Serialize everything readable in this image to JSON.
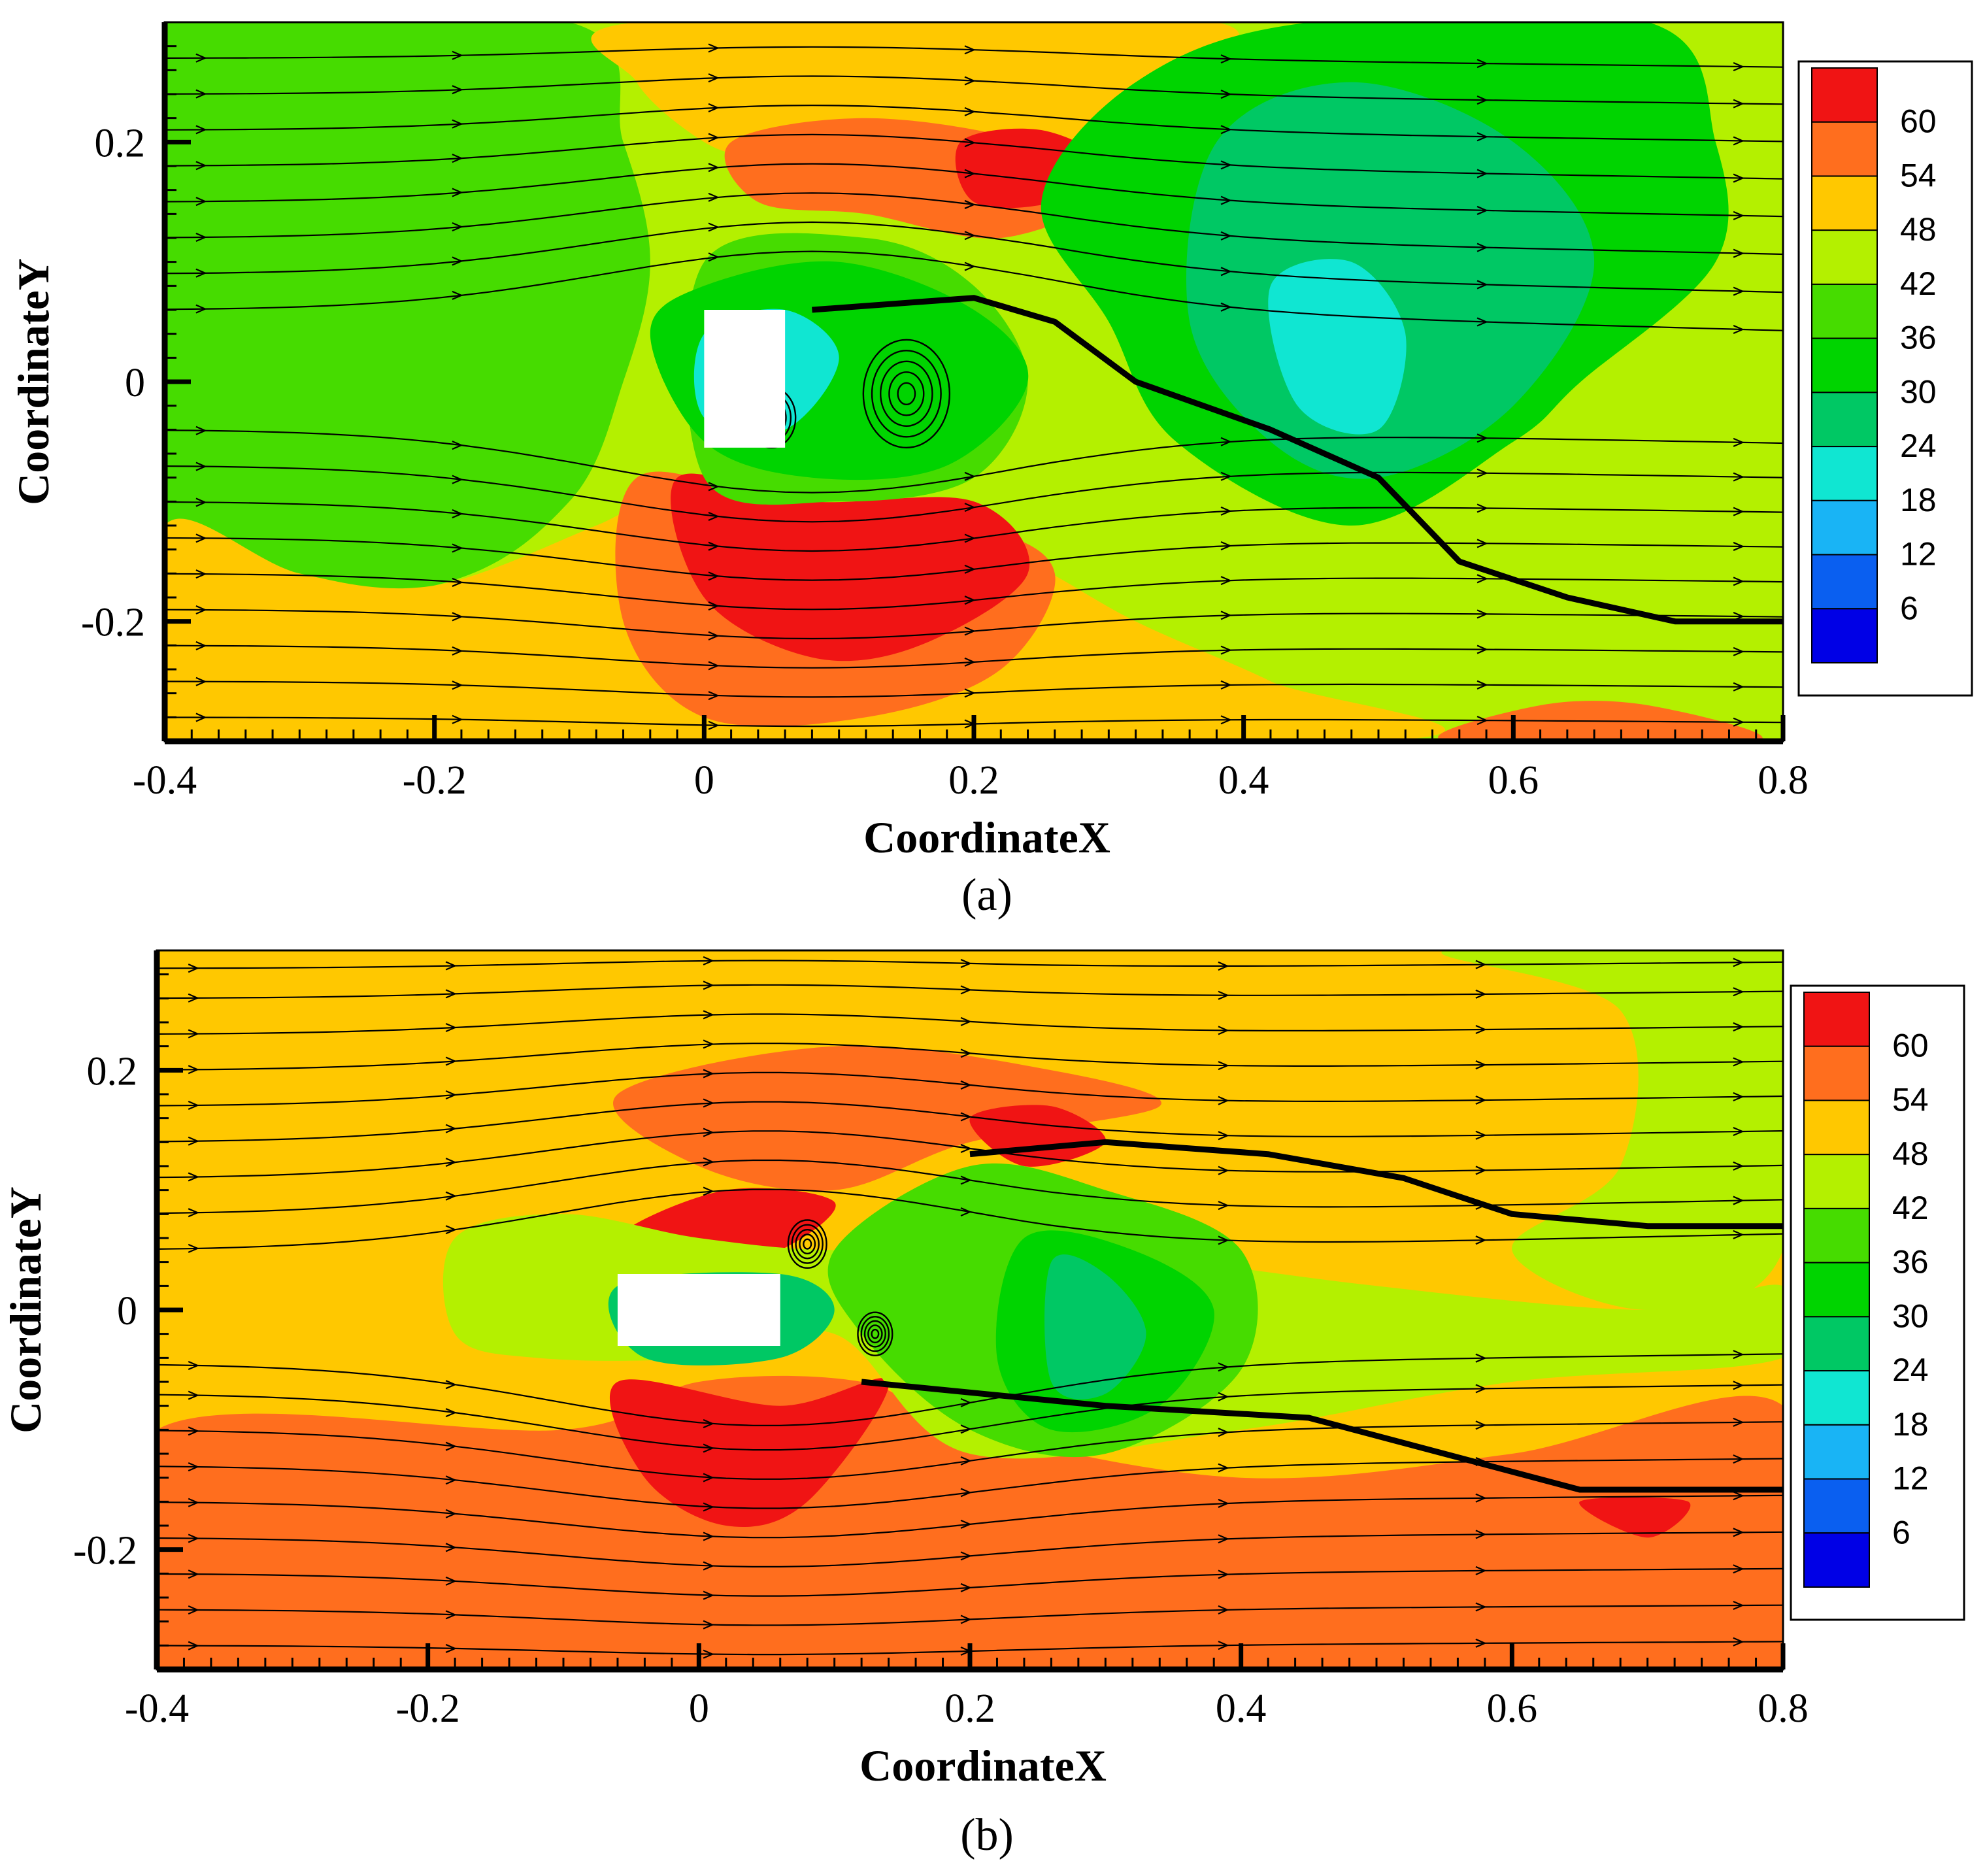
{
  "chart_data": [
    {
      "type": "heatmap",
      "panel_label": "(a)",
      "panel_letter": "a",
      "xlabel": "CoordinateX",
      "ylabel": "CoordinateY",
      "xlim": [
        -0.4,
        0.8
      ],
      "ylim": [
        -0.3,
        0.3
      ],
      "x_ticks": [
        -0.4,
        -0.2,
        0,
        0.2,
        0.4,
        0.6,
        0.8
      ],
      "x_tick_labels": [
        "-0.4",
        "-0.2",
        "0",
        "0.2",
        "0.4",
        "0.6",
        "0.8"
      ],
      "y_ticks": [
        0.2,
        0,
        -0.2
      ],
      "y_tick_labels": [
        "0.2",
        "0",
        "-0.2"
      ],
      "colorbar": {
        "levels": [
          6,
          12,
          18,
          24,
          30,
          36,
          42,
          48,
          54,
          60
        ],
        "labels": [
          "60",
          "54",
          "48",
          "42",
          "36",
          "30",
          "24",
          "18",
          "12",
          "6"
        ],
        "colors": [
          "#0000e6",
          "#0a5ff0",
          "#19b4f5",
          "#10e6d2",
          "#00c864",
          "#00d400",
          "#46dc00",
          "#b4f000",
          "#ffc800",
          "#ff6e1e",
          "#f01414"
        ]
      },
      "background_level": 42,
      "obstacle": {
        "x": [
          -0.0,
          0.06
        ],
        "y": [
          -0.055,
          0.06
        ]
      },
      "regions": [
        {
          "level": 36,
          "pts": [
            [
              -0.4,
              0.3
            ],
            [
              -0.1,
              0.3
            ],
            [
              -0.06,
              0.2
            ],
            [
              -0.04,
              0.1
            ],
            [
              -0.06,
              0.0
            ],
            [
              -0.1,
              -0.1
            ],
            [
              -0.2,
              -0.17
            ],
            [
              -0.4,
              -0.18
            ]
          ]
        },
        {
          "level": 48,
          "pts": [
            [
              -0.4,
              -0.12
            ],
            [
              -0.3,
              -0.16
            ],
            [
              -0.2,
              -0.17
            ],
            [
              -0.08,
              -0.12
            ],
            [
              0.0,
              -0.08
            ],
            [
              0.12,
              -0.12
            ],
            [
              0.22,
              -0.14
            ],
            [
              0.32,
              -0.2
            ],
            [
              0.42,
              -0.25
            ],
            [
              0.5,
              -0.3
            ],
            [
              -0.4,
              -0.3
            ]
          ]
        },
        {
          "level": 48,
          "pts": [
            [
              -0.05,
              0.3
            ],
            [
              0.38,
              0.3
            ],
            [
              0.3,
              0.22
            ],
            [
              0.2,
              0.16
            ],
            [
              0.12,
              0.14
            ],
            [
              0.05,
              0.18
            ],
            [
              0.0,
              0.2
            ],
            [
              -0.05,
              0.25
            ]
          ]
        },
        {
          "level": 54,
          "pts": [
            [
              0.02,
              0.2
            ],
            [
              0.12,
              0.22
            ],
            [
              0.24,
              0.2
            ],
            [
              0.3,
              0.16
            ],
            [
              0.22,
              0.12
            ],
            [
              0.12,
              0.14
            ],
            [
              0.04,
              0.15
            ]
          ]
        },
        {
          "level": 54,
          "pts": [
            [
              -0.05,
              -0.08
            ],
            [
              0.06,
              -0.1
            ],
            [
              0.2,
              -0.12
            ],
            [
              0.26,
              -0.16
            ],
            [
              0.22,
              -0.24
            ],
            [
              0.12,
              -0.28
            ],
            [
              0.0,
              -0.28
            ],
            [
              -0.06,
              -0.2
            ]
          ]
        },
        {
          "level": 60,
          "pts": [
            [
              -0.02,
              -0.08
            ],
            [
              0.08,
              -0.1
            ],
            [
              0.2,
              -0.1
            ],
            [
              0.24,
              -0.16
            ],
            [
              0.16,
              -0.22
            ],
            [
              0.08,
              -0.23
            ],
            [
              0.0,
              -0.18
            ]
          ]
        },
        {
          "level": 60,
          "pts": [
            [
              0.19,
              0.2
            ],
            [
              0.25,
              0.21
            ],
            [
              0.3,
              0.18
            ],
            [
              0.26,
              0.15
            ],
            [
              0.2,
              0.15
            ]
          ]
        },
        {
          "level": 54,
          "pts": [
            [
              0.55,
              -0.3
            ],
            [
              0.78,
              -0.3
            ],
            [
              0.7,
              -0.27
            ],
            [
              0.62,
              -0.27
            ]
          ]
        },
        {
          "level": 36,
          "pts": [
            [
              0.0,
              0.1
            ],
            [
              0.12,
              0.12
            ],
            [
              0.2,
              0.08
            ],
            [
              0.24,
              0.0
            ],
            [
              0.2,
              -0.08
            ],
            [
              0.1,
              -0.1
            ],
            [
              0.0,
              -0.08
            ]
          ]
        },
        {
          "level": 30,
          "pts": [
            [
              -0.04,
              0.04
            ],
            [
              0.0,
              0.08
            ],
            [
              0.1,
              0.1
            ],
            [
              0.2,
              0.06
            ],
            [
              0.24,
              0.0
            ],
            [
              0.18,
              -0.07
            ],
            [
              0.08,
              -0.08
            ],
            [
              0.0,
              -0.05
            ]
          ]
        },
        {
          "level": 30,
          "pts": [
            [
              0.32,
              0.25
            ],
            [
              0.45,
              0.3
            ],
            [
              0.7,
              0.3
            ],
            [
              0.75,
              0.2
            ],
            [
              0.75,
              0.1
            ],
            [
              0.65,
              0.0
            ],
            [
              0.6,
              -0.05
            ],
            [
              0.48,
              -0.12
            ],
            [
              0.35,
              -0.05
            ],
            [
              0.3,
              0.05
            ],
            [
              0.25,
              0.15
            ]
          ]
        },
        {
          "level": 24,
          "pts": [
            [
              0.38,
              0.2
            ],
            [
              0.48,
              0.25
            ],
            [
              0.6,
              0.2
            ],
            [
              0.66,
              0.1
            ],
            [
              0.6,
              -0.02
            ],
            [
              0.5,
              -0.08
            ],
            [
              0.42,
              -0.05
            ],
            [
              0.36,
              0.05
            ]
          ]
        },
        {
          "level": 18,
          "pts": [
            [
              0.42,
              0.08
            ],
            [
              0.48,
              0.1
            ],
            [
              0.52,
              0.04
            ],
            [
              0.5,
              -0.04
            ],
            [
              0.44,
              -0.02
            ]
          ]
        },
        {
          "level": 18,
          "pts": [
            [
              0.0,
              0.04
            ],
            [
              0.06,
              0.06
            ],
            [
              0.1,
              0.02
            ],
            [
              0.06,
              -0.04
            ],
            [
              0.0,
              -0.03
            ]
          ]
        }
      ],
      "streamline_offsets": [
        -0.28,
        -0.25,
        -0.22,
        -0.19,
        -0.16,
        -0.13,
        -0.1,
        -0.07,
        -0.04,
        0.06,
        0.09,
        0.12,
        0.15,
        0.18,
        0.21,
        0.24,
        0.27
      ],
      "wake_line": [
        [
          0.08,
          0.06
        ],
        [
          0.2,
          0.07
        ],
        [
          0.26,
          0.05
        ],
        [
          0.32,
          0.0
        ],
        [
          0.42,
          -0.04
        ],
        [
          0.5,
          -0.08
        ],
        [
          0.56,
          -0.15
        ],
        [
          0.64,
          -0.18
        ],
        [
          0.72,
          -0.2
        ],
        [
          0.8,
          -0.2
        ]
      ],
      "vortices": [
        [
          0.15,
          -0.01,
          0.045
        ],
        [
          0.05,
          -0.03,
          0.025
        ]
      ]
    },
    {
      "type": "heatmap",
      "panel_label": "(b)",
      "panel_letter": "b",
      "xlabel": "CoordinateX",
      "ylabel": "CoordinateY",
      "xlim": [
        -0.4,
        0.8
      ],
      "ylim": [
        -0.3,
        0.3
      ],
      "x_ticks": [
        -0.4,
        -0.2,
        0,
        0.2,
        0.4,
        0.6,
        0.8
      ],
      "x_tick_labels": [
        "-0.4",
        "-0.2",
        "0",
        "0.2",
        "0.4",
        "0.6",
        "0.8"
      ],
      "y_ticks": [
        0.2,
        0,
        -0.2
      ],
      "y_tick_labels": [
        "0.2",
        "0",
        "-0.2"
      ],
      "colorbar": {
        "levels": [
          6,
          12,
          18,
          24,
          30,
          36,
          42,
          48,
          54,
          60
        ],
        "labels": [
          "60",
          "54",
          "48",
          "42",
          "36",
          "30",
          "24",
          "18",
          "12",
          "6"
        ],
        "colors": [
          "#0000e6",
          "#0a5ff0",
          "#19b4f5",
          "#10e6d2",
          "#00c864",
          "#00d400",
          "#46dc00",
          "#b4f000",
          "#ffc800",
          "#ff6e1e",
          "#f01414"
        ]
      },
      "background_level": 48,
      "obstacle": {
        "x": [
          -0.06,
          0.06
        ],
        "y": [
          -0.03,
          0.03
        ]
      },
      "regions": [
        {
          "level": 54,
          "pts": [
            [
              -0.4,
              -0.1
            ],
            [
              -0.1,
              -0.1
            ],
            [
              0.0,
              -0.06
            ],
            [
              0.12,
              -0.06
            ],
            [
              0.2,
              -0.1
            ],
            [
              0.4,
              -0.14
            ],
            [
              0.6,
              -0.12
            ],
            [
              0.8,
              -0.08
            ],
            [
              0.8,
              -0.3
            ],
            [
              -0.4,
              -0.3
            ]
          ]
        },
        {
          "level": 54,
          "pts": [
            [
              -0.06,
              0.18
            ],
            [
              0.1,
              0.22
            ],
            [
              0.26,
              0.2
            ],
            [
              0.34,
              0.17
            ],
            [
              0.2,
              0.14
            ],
            [
              0.1,
              0.1
            ],
            [
              0.0,
              0.12
            ]
          ]
        },
        {
          "level": 60,
          "pts": [
            [
              -0.06,
              -0.06
            ],
            [
              0.06,
              -0.08
            ],
            [
              0.14,
              -0.06
            ],
            [
              0.08,
              -0.16
            ],
            [
              0.02,
              -0.18
            ],
            [
              -0.04,
              -0.14
            ]
          ]
        },
        {
          "level": 60,
          "pts": [
            [
              -0.06,
              0.06
            ],
            [
              0.02,
              0.1
            ],
            [
              0.1,
              0.09
            ],
            [
              0.06,
              0.05
            ],
            [
              0.0,
              0.04
            ]
          ]
        },
        {
          "level": 60,
          "pts": [
            [
              0.2,
              0.16
            ],
            [
              0.26,
              0.17
            ],
            [
              0.3,
              0.14
            ],
            [
              0.24,
              0.12
            ]
          ]
        },
        {
          "level": 60,
          "pts": [
            [
              0.65,
              -0.16
            ],
            [
              0.73,
              -0.16
            ],
            [
              0.7,
              -0.19
            ]
          ]
        },
        {
          "level": 42,
          "pts": [
            [
              0.55,
              0.3
            ],
            [
              0.8,
              0.3
            ],
            [
              0.8,
              0.05
            ],
            [
              0.7,
              0.0
            ],
            [
              0.6,
              0.05
            ],
            [
              0.68,
              0.12
            ],
            [
              0.68,
              0.25
            ]
          ]
        },
        {
          "level": 42,
          "pts": [
            [
              -0.18,
              0.06
            ],
            [
              -0.1,
              0.08
            ],
            [
              0.0,
              0.06
            ],
            [
              0.1,
              0.05
            ],
            [
              0.2,
              0.06
            ],
            [
              0.3,
              0.05
            ],
            [
              0.5,
              0.02
            ],
            [
              0.7,
              0.0
            ],
            [
              0.8,
              0.02
            ],
            [
              0.8,
              -0.04
            ],
            [
              0.6,
              -0.06
            ],
            [
              0.4,
              -0.1
            ],
            [
              0.2,
              -0.12
            ],
            [
              0.1,
              -0.02
            ],
            [
              0.0,
              -0.04
            ],
            [
              -0.12,
              -0.04
            ],
            [
              -0.18,
              -0.02
            ]
          ]
        },
        {
          "level": 36,
          "pts": [
            [
              0.1,
              0.05
            ],
            [
              0.2,
              0.12
            ],
            [
              0.3,
              0.1
            ],
            [
              0.4,
              0.05
            ],
            [
              0.4,
              -0.05
            ],
            [
              0.3,
              -0.12
            ],
            [
              0.2,
              -0.1
            ],
            [
              0.12,
              -0.02
            ]
          ]
        },
        {
          "level": 30,
          "pts": [
            [
              0.24,
              0.06
            ],
            [
              0.32,
              0.05
            ],
            [
              0.38,
              0.0
            ],
            [
              0.34,
              -0.08
            ],
            [
              0.26,
              -0.1
            ],
            [
              0.22,
              -0.04
            ]
          ]
        },
        {
          "level": 24,
          "pts": [
            [
              0.26,
              0.04
            ],
            [
              0.3,
              0.03
            ],
            [
              0.33,
              -0.02
            ],
            [
              0.3,
              -0.07
            ],
            [
              0.26,
              -0.06
            ]
          ]
        },
        {
          "level": 24,
          "pts": [
            [
              -0.06,
              0.02
            ],
            [
              0.06,
              0.03
            ],
            [
              0.1,
              0.0
            ],
            [
              0.06,
              -0.04
            ],
            [
              -0.04,
              -0.04
            ]
          ]
        }
      ],
      "streamline_offsets": [
        -0.28,
        -0.25,
        -0.22,
        -0.19,
        -0.16,
        -0.13,
        -0.1,
        -0.07,
        -0.045,
        0.05,
        0.08,
        0.11,
        0.14,
        0.17,
        0.2,
        0.23,
        0.26,
        0.285
      ],
      "wake_line": [
        [
          0.2,
          0.13
        ],
        [
          0.3,
          0.14
        ],
        [
          0.42,
          0.13
        ],
        [
          0.52,
          0.11
        ],
        [
          0.6,
          0.08
        ],
        [
          0.7,
          0.07
        ],
        [
          0.8,
          0.07
        ]
      ],
      "wake_line2": [
        [
          0.12,
          -0.06
        ],
        [
          0.3,
          -0.08
        ],
        [
          0.45,
          -0.09
        ],
        [
          0.55,
          -0.12
        ],
        [
          0.65,
          -0.15
        ],
        [
          0.8,
          -0.15
        ]
      ],
      "vortices": [
        [
          0.08,
          0.055,
          0.02
        ],
        [
          0.13,
          -0.02,
          0.018
        ]
      ]
    }
  ]
}
